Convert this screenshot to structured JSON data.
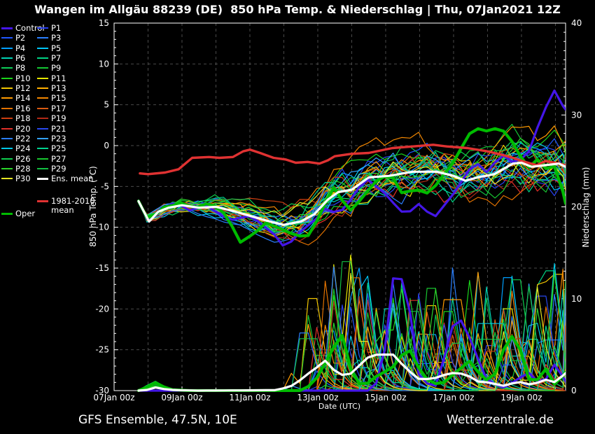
{
  "title": "Wangen im Allgäu 88239 (DE)  850 hPa Temp. & Niederschlag | Thu, 07Jan2021 12Z",
  "footer": {
    "left": "GFS Ensemble, 47.5N, 10E",
    "right": "Wetterzentrale.de"
  },
  "colors": {
    "background": "#000000",
    "text": "#ffffff",
    "grid": "#4a4a4a",
    "frame": "#ffffff",
    "control": "#4416e8",
    "oper": "#00bb00",
    "ens_mean": "#ffffff",
    "clim_mean": "#e03232"
  },
  "legend": {
    "labels": {
      "control": "Control",
      "ens_mean": "Ens. mean",
      "clim_mean": "1981-2010 mean",
      "oper": "Oper"
    }
  },
  "chart_data": {
    "type": "line",
    "title": "Wangen im Allgäu 88239 (DE)  850 hPa Temp. & Niederschlag | Thu, 07Jan2021 12Z",
    "x_axis": {
      "label": "Date (UTC)",
      "range_days": [
        0,
        13.3
      ],
      "ticks": [
        {
          "day": 0,
          "label": "07Jan 00z"
        },
        {
          "day": 2,
          "label": "09Jan 00z"
        },
        {
          "day": 4,
          "label": "11Jan 00z"
        },
        {
          "day": 6,
          "label": "13Jan 00z"
        },
        {
          "day": 8,
          "label": "15Jan 00z"
        },
        {
          "day": 10,
          "label": "17Jan 00z"
        },
        {
          "day": 12,
          "label": "19Jan 00z"
        }
      ]
    },
    "y_axis_left": {
      "label": "850 hPa Temp. (°C)",
      "range": [
        -30,
        15
      ],
      "ticks": [
        15,
        10,
        5,
        0,
        -5,
        -10,
        -15,
        -20,
        -25,
        -30
      ]
    },
    "y_axis_right": {
      "label": "Niederschlag (mm)",
      "range": [
        0,
        40
      ],
      "ticks": [
        40,
        30,
        20,
        10,
        0
      ]
    },
    "series": {
      "clim_mean": {
        "name": "1981-2010 mean",
        "axis": "temp",
        "points": [
          [
            0.76,
            -3.4
          ],
          [
            1.0,
            -3.5
          ],
          [
            1.5,
            -3.3
          ],
          [
            1.9,
            -2.9
          ],
          [
            2.3,
            -1.5
          ],
          [
            2.8,
            -1.4
          ],
          [
            3.1,
            -1.5
          ],
          [
            3.5,
            -1.4
          ],
          [
            3.8,
            -0.7
          ],
          [
            4.0,
            -0.5
          ],
          [
            4.3,
            -0.9
          ],
          [
            4.7,
            -1.5
          ],
          [
            5.05,
            -1.7
          ],
          [
            5.35,
            -2.1
          ],
          [
            5.7,
            -2.0
          ],
          [
            6.05,
            -2.2
          ],
          [
            6.3,
            -1.8
          ],
          [
            6.5,
            -1.3
          ],
          [
            7.0,
            -1.0
          ],
          [
            7.5,
            -0.9
          ],
          [
            8.2,
            -0.3
          ],
          [
            8.8,
            -0.1
          ],
          [
            9.4,
            0.1
          ],
          [
            9.8,
            -0.1
          ],
          [
            10.4,
            -0.3
          ],
          [
            11.0,
            -0.7
          ],
          [
            11.4,
            -1.1
          ],
          [
            11.75,
            -1.5
          ],
          [
            12.1,
            -2.0
          ],
          [
            12.45,
            -2.4
          ],
          [
            12.7,
            -1.9
          ],
          [
            13.0,
            -2.1
          ],
          [
            13.3,
            -2.4
          ]
        ]
      },
      "ens_mean_temp": {
        "name": "Ens. mean",
        "axis": "temp",
        "points": [
          [
            0.72,
            -6.8
          ],
          [
            1.03,
            -9.3
          ],
          [
            1.3,
            -8.1
          ],
          [
            1.6,
            -7.6
          ],
          [
            2.0,
            -7.3
          ],
          [
            2.5,
            -7.6
          ],
          [
            3.0,
            -7.5
          ],
          [
            3.5,
            -8.0
          ],
          [
            4.0,
            -8.6
          ],
          [
            4.5,
            -9.2
          ],
          [
            5.0,
            -9.7
          ],
          [
            5.5,
            -9.3
          ],
          [
            5.9,
            -8.4
          ],
          [
            6.3,
            -6.6
          ],
          [
            6.6,
            -5.7
          ],
          [
            7.0,
            -5.4
          ],
          [
            7.5,
            -3.9
          ],
          [
            8.1,
            -3.7
          ],
          [
            8.8,
            -3.2
          ],
          [
            9.5,
            -3.2
          ],
          [
            10.0,
            -3.7
          ],
          [
            10.35,
            -4.3
          ],
          [
            10.7,
            -3.9
          ],
          [
            11.2,
            -3.5
          ],
          [
            11.75,
            -2.2
          ],
          [
            12.0,
            -2.1
          ],
          [
            12.3,
            -2.6
          ],
          [
            12.7,
            -2.4
          ],
          [
            13.1,
            -2.2
          ],
          [
            13.3,
            -2.6
          ]
        ]
      },
      "control_temp": {
        "name": "Control",
        "axis": "temp",
        "points": [
          [
            0.72,
            -6.9
          ],
          [
            1.03,
            -9.5
          ],
          [
            1.4,
            -7.8
          ],
          [
            1.8,
            -7.2
          ],
          [
            2.2,
            -7.9
          ],
          [
            2.7,
            -7.3
          ],
          [
            3.1,
            -8.4
          ],
          [
            3.5,
            -9.3
          ],
          [
            3.9,
            -8.6
          ],
          [
            4.3,
            -9.6
          ],
          [
            4.7,
            -10.6
          ],
          [
            5.05,
            -12.4
          ],
          [
            5.4,
            -10.6
          ],
          [
            5.8,
            -9.4
          ],
          [
            6.2,
            -7.6
          ],
          [
            6.6,
            -8.3
          ],
          [
            7.0,
            -6.6
          ],
          [
            7.4,
            -4.3
          ],
          [
            7.8,
            -5.3
          ],
          [
            8.2,
            -6.9
          ],
          [
            8.6,
            -8.3
          ],
          [
            9.0,
            -7.3
          ],
          [
            9.4,
            -8.8
          ],
          [
            9.8,
            -7.0
          ],
          [
            10.2,
            -4.6
          ],
          [
            10.6,
            -2.1
          ],
          [
            11.0,
            -3.3
          ],
          [
            11.4,
            -1.3
          ],
          [
            11.8,
            -2.3
          ],
          [
            12.2,
            -0.6
          ],
          [
            12.6,
            3.6
          ],
          [
            12.95,
            6.9
          ],
          [
            13.15,
            5.4
          ],
          [
            13.3,
            4.5
          ]
        ]
      },
      "oper_temp": {
        "name": "Oper",
        "axis": "temp",
        "points": [
          [
            0.72,
            -6.8
          ],
          [
            1.03,
            -9.2
          ],
          [
            1.4,
            -7.3
          ],
          [
            1.9,
            -6.9
          ],
          [
            2.4,
            -7.7
          ],
          [
            2.9,
            -7.1
          ],
          [
            3.3,
            -8.1
          ],
          [
            3.75,
            -11.6
          ],
          [
            4.1,
            -10.4
          ],
          [
            4.5,
            -9.1
          ],
          [
            4.9,
            -9.9
          ],
          [
            5.3,
            -11.0
          ],
          [
            5.7,
            -11.4
          ],
          [
            6.1,
            -8.1
          ],
          [
            6.5,
            -4.9
          ],
          [
            6.9,
            -7.7
          ],
          [
            7.3,
            -6.3
          ],
          [
            7.7,
            -4.1
          ],
          [
            8.1,
            -3.1
          ],
          [
            8.5,
            -5.7
          ],
          [
            8.9,
            -4.9
          ],
          [
            9.3,
            -5.5
          ],
          [
            9.7,
            -3.1
          ],
          [
            10.1,
            -1.1
          ],
          [
            10.4,
            1.7
          ],
          [
            10.7,
            2.7
          ],
          [
            11.0,
            2.2
          ],
          [
            11.3,
            2.8
          ],
          [
            11.6,
            1.4
          ],
          [
            11.9,
            -0.6
          ],
          [
            12.2,
            -2.3
          ],
          [
            12.5,
            -1.3
          ],
          [
            12.8,
            -2.9
          ],
          [
            13.05,
            -2.3
          ],
          [
            13.3,
            -6.9
          ]
        ]
      },
      "ens_mean_precip": {
        "name": "Ens. mean",
        "axis": "precip",
        "points": [
          [
            0.72,
            0
          ],
          [
            0.95,
            0.05
          ],
          [
            1.2,
            0.35
          ],
          [
            1.5,
            0.15
          ],
          [
            1.8,
            0.05
          ],
          [
            2.5,
            0
          ],
          [
            4.8,
            0.05
          ],
          [
            5.3,
            0.6
          ],
          [
            5.7,
            1.8
          ],
          [
            6.0,
            2.6
          ],
          [
            6.27,
            3.4
          ],
          [
            6.55,
            1.8
          ],
          [
            6.9,
            1.6
          ],
          [
            7.3,
            3.0
          ],
          [
            7.56,
            3.9
          ],
          [
            7.9,
            3.9
          ],
          [
            8.2,
            4.0
          ],
          [
            8.6,
            2.4
          ],
          [
            9.0,
            1.2
          ],
          [
            9.4,
            1.3
          ],
          [
            9.8,
            1.8
          ],
          [
            10.1,
            2.0
          ],
          [
            10.5,
            1.5
          ],
          [
            10.7,
            1.0
          ],
          [
            11.0,
            0.9
          ],
          [
            11.5,
            0.5
          ],
          [
            11.9,
            1.0
          ],
          [
            12.3,
            0.6
          ],
          [
            12.7,
            1.2
          ],
          [
            13.0,
            0.9
          ],
          [
            13.3,
            1.9
          ]
        ]
      },
      "control_precip": {
        "name": "Control",
        "axis": "precip",
        "points": [
          [
            0.72,
            0
          ],
          [
            7.6,
            0
          ],
          [
            7.9,
            2.0
          ],
          [
            8.2,
            12.2
          ],
          [
            8.45,
            12.4
          ],
          [
            8.7,
            9.0
          ],
          [
            9.0,
            1.0
          ],
          [
            9.5,
            0.5
          ],
          [
            10.05,
            8.1
          ],
          [
            10.3,
            7.4
          ],
          [
            10.6,
            4.5
          ],
          [
            11.0,
            1.0
          ],
          [
            11.5,
            0.3
          ],
          [
            12.2,
            2.0
          ],
          [
            12.6,
            0.5
          ],
          [
            13.0,
            3.0
          ],
          [
            13.3,
            1.0
          ]
        ]
      },
      "oper_precip": {
        "name": "Oper",
        "axis": "precip",
        "points": [
          [
            0.72,
            0
          ],
          [
            0.95,
            0.3
          ],
          [
            1.15,
            1.0
          ],
          [
            1.4,
            0.5
          ],
          [
            1.7,
            0.1
          ],
          [
            2.2,
            0
          ],
          [
            5.6,
            0
          ],
          [
            6.0,
            1.5
          ],
          [
            6.7,
            6.3
          ],
          [
            7.0,
            2.0
          ],
          [
            7.3,
            0.3
          ],
          [
            7.7,
            1.5
          ],
          [
            8.2,
            2.5
          ],
          [
            8.66,
            4.8
          ],
          [
            9.1,
            1.5
          ],
          [
            9.6,
            0.5
          ],
          [
            10.0,
            1.8
          ],
          [
            10.5,
            3.3
          ],
          [
            10.9,
            1.0
          ],
          [
            11.3,
            2.0
          ],
          [
            11.6,
            6.3
          ],
          [
            11.9,
            5.3
          ],
          [
            12.3,
            0.2
          ],
          [
            12.7,
            2.5
          ],
          [
            13.0,
            0.5
          ],
          [
            13.3,
            2.0
          ]
        ]
      }
    },
    "ensemble": {
      "members": [
        {
          "label": "P1",
          "color": "#2840f0"
        },
        {
          "label": "P2",
          "color": "#2058ff"
        },
        {
          "label": "P3",
          "color": "#2a80ff"
        },
        {
          "label": "P4",
          "color": "#00a0ff"
        },
        {
          "label": "P5",
          "color": "#00c6f6"
        },
        {
          "label": "P6",
          "color": "#00d2b4"
        },
        {
          "label": "P7",
          "color": "#00d284"
        },
        {
          "label": "P8",
          "color": "#0ccc58"
        },
        {
          "label": "P9",
          "color": "#14c634"
        },
        {
          "label": "P10",
          "color": "#1ad41a"
        },
        {
          "label": "P11",
          "color": "#e6e600"
        },
        {
          "label": "P12",
          "color": "#f2c600"
        },
        {
          "label": "P13",
          "color": "#ffae00"
        },
        {
          "label": "P14",
          "color": "#ff9a00"
        },
        {
          "label": "P15",
          "color": "#f28600"
        },
        {
          "label": "P16",
          "color": "#e27200"
        },
        {
          "label": "P17",
          "color": "#d85a12"
        },
        {
          "label": "P18",
          "color": "#cc3e10"
        },
        {
          "label": "P19",
          "color": "#b22a16"
        },
        {
          "label": "P20",
          "color": "#e03028"
        },
        {
          "label": "P21",
          "color": "#2848ee"
        },
        {
          "label": "P22",
          "color": "#2a7eff"
        },
        {
          "label": "P23",
          "color": "#32a2ff"
        },
        {
          "label": "P24",
          "color": "#00c8e6"
        },
        {
          "label": "P25",
          "color": "#00d28e"
        },
        {
          "label": "P26",
          "color": "#0ecc4e"
        },
        {
          "label": "P27",
          "color": "#18c630"
        },
        {
          "label": "P28",
          "color": "#2ad42a"
        },
        {
          "label": "P29",
          "color": "#12be42"
        },
        {
          "label": "P30",
          "color": "#e6e622"
        }
      ],
      "start_day": 0.72,
      "end_day": 13.3,
      "step_days": 0.25,
      "temp_spread": [
        [
          0.72,
          0.25
        ],
        [
          1,
          0.45
        ],
        [
          1.5,
          0.65
        ],
        [
          2,
          0.85
        ],
        [
          3,
          1.15
        ],
        [
          4,
          1.55
        ],
        [
          5,
          2.1
        ],
        [
          6,
          2.7
        ],
        [
          7,
          3.1
        ],
        [
          8,
          3.1
        ],
        [
          9,
          3.3
        ],
        [
          10,
          3.7
        ],
        [
          11,
          3.8
        ],
        [
          12,
          4.0
        ],
        [
          13.3,
          4.3
        ]
      ],
      "temp_clamp": [
        -12.8,
        8.2
      ],
      "precip_peak": [
        [
          5,
          3
        ],
        [
          5.6,
          9
        ],
        [
          6.3,
          15
        ],
        [
          7,
          15
        ],
        [
          8,
          13
        ],
        [
          9,
          12
        ],
        [
          10,
          15
        ],
        [
          10.8,
          13
        ],
        [
          11.6,
          13
        ],
        [
          12.3,
          12
        ],
        [
          13.3,
          16
        ]
      ],
      "precip_onset_range": [
        5.0,
        6.3
      ],
      "precip_max": 16.5,
      "early_bump_members": [
        6,
        7,
        8,
        9,
        25,
        27
      ]
    }
  }
}
